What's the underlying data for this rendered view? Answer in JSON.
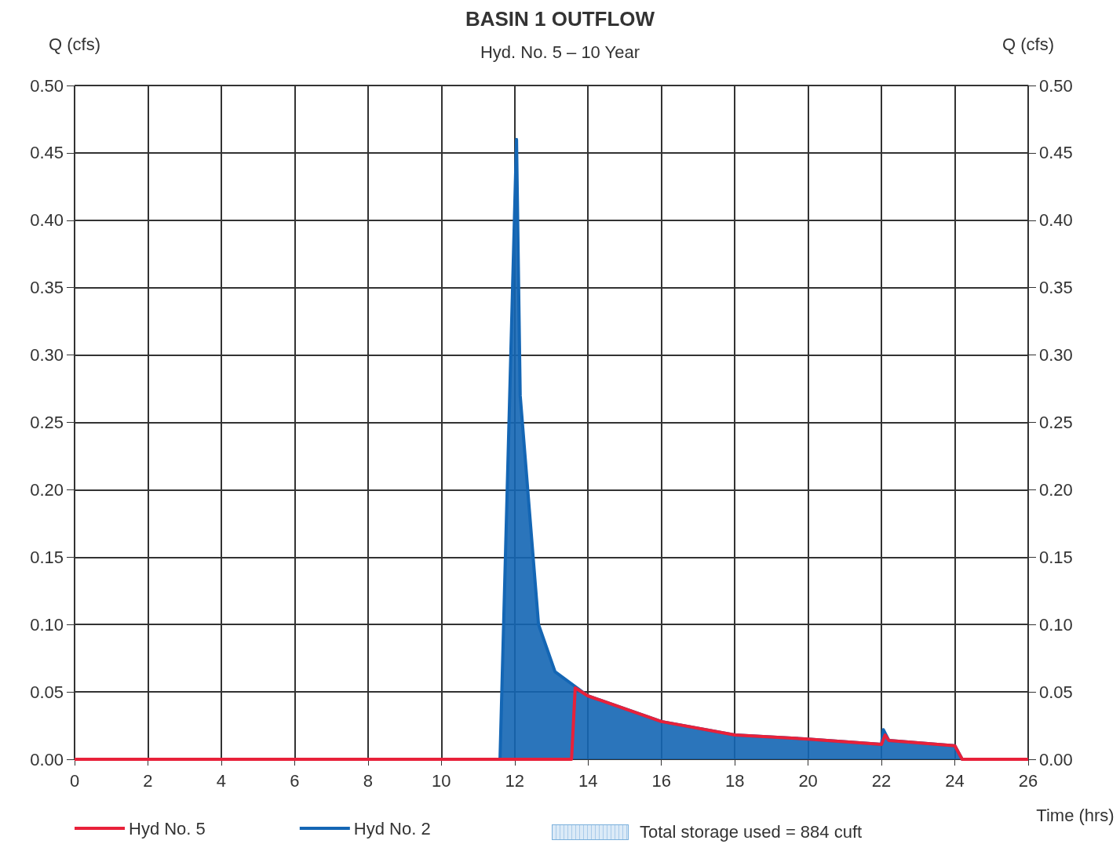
{
  "chart_data": {
    "type": "line",
    "title": "BASIN 1 OUTFLOW",
    "subtitle": "Hyd. No. 5 – 10 Year",
    "xlabel": "Time (hrs)",
    "ylabel": "Q (cfs)",
    "y2label": "Q (cfs)",
    "series": [
      {
        "name": "Hyd No. 2",
        "type": "area",
        "color": "#1466b4",
        "x": [
          0,
          11.6,
          12.05,
          12.15,
          12.65,
          13.1,
          13.6,
          14.0,
          16,
          18,
          20,
          22,
          22.05,
          22.2,
          24,
          24.2,
          26
        ],
        "values": [
          0,
          0,
          0.46,
          0.27,
          0.1,
          0.065,
          0.055,
          0.047,
          0.028,
          0.018,
          0.015,
          0.011,
          0.022,
          0.014,
          0.01,
          0,
          0
        ]
      },
      {
        "name": "Hyd No. 5",
        "color": "#e8213a",
        "x": [
          0,
          13.55,
          13.65,
          14.0,
          16,
          18,
          20,
          22,
          22.1,
          22.2,
          24,
          24.2,
          26
        ],
        "values": [
          0,
          0,
          0.053,
          0.047,
          0.028,
          0.018,
          0.015,
          0.011,
          0.018,
          0.014,
          0.01,
          0,
          0
        ]
      }
    ],
    "xlim": [
      0,
      26
    ],
    "xticks": [
      0,
      2,
      4,
      6,
      8,
      10,
      12,
      14,
      16,
      18,
      20,
      22,
      24,
      26
    ],
    "ylim": [
      0,
      0.5
    ],
    "yticks": [
      {
        "value": 0,
        "label": "0.00"
      },
      {
        "value": 0.05,
        "label": "0.05"
      },
      {
        "value": 0.1,
        "label": "0.10"
      },
      {
        "value": 0.15,
        "label": "0.15"
      },
      {
        "value": 0.2,
        "label": "0.20"
      },
      {
        "value": 0.25,
        "label": "0.25"
      },
      {
        "value": 0.3,
        "label": "0.30"
      },
      {
        "value": 0.35,
        "label": "0.35"
      },
      {
        "value": 0.4,
        "label": "0.40"
      },
      {
        "value": 0.45,
        "label": "0.45"
      },
      {
        "value": 0.5,
        "label": "0.50"
      }
    ],
    "y2lim": [
      0,
      0.5
    ],
    "y2ticks": [
      {
        "value": 0,
        "label": "0.00"
      },
      {
        "value": 0.05,
        "label": "0.05"
      },
      {
        "value": 0.1,
        "label": "0.10"
      },
      {
        "value": 0.15,
        "label": "0.15"
      },
      {
        "value": 0.2,
        "label": "0.20"
      },
      {
        "value": 0.25,
        "label": "0.25"
      },
      {
        "value": 0.3,
        "label": "0.30"
      },
      {
        "value": 0.35,
        "label": "0.35"
      },
      {
        "value": 0.4,
        "label": "0.40"
      },
      {
        "value": 0.45,
        "label": "0.45"
      },
      {
        "value": 0.5,
        "label": "0.50"
      }
    ],
    "annotations": [
      "Total storage used = 884 cuft"
    ],
    "grid": true,
    "legend": "bottom",
    "marker": "none",
    "line_style": "solid"
  }
}
